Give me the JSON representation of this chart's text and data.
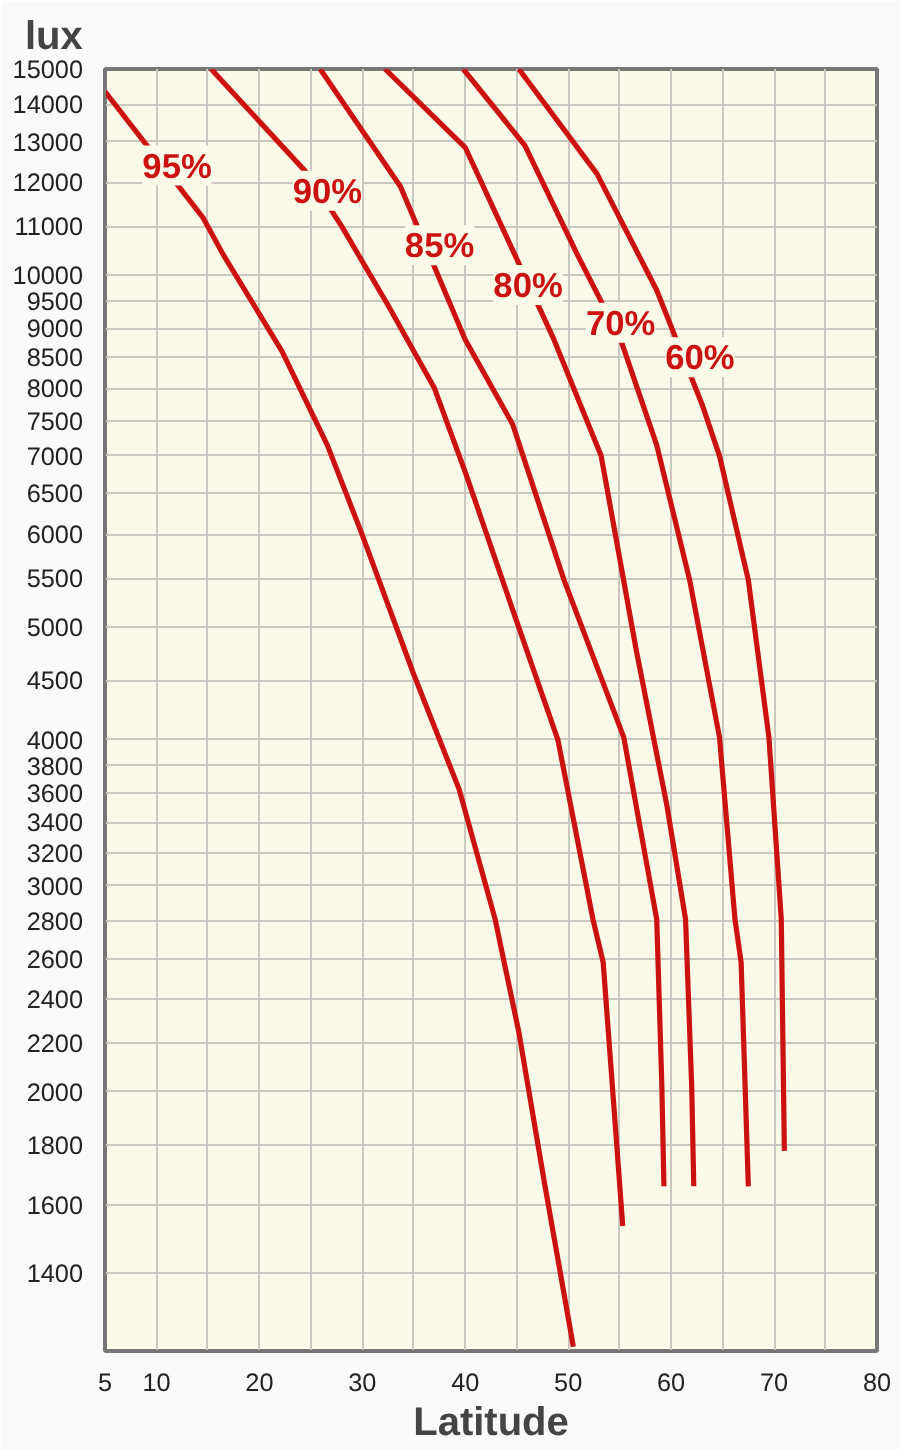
{
  "chart_data": {
    "type": "line",
    "xlabel": "Latitude",
    "ylabel": "lux",
    "log": "y",
    "grid": true,
    "marker": "none",
    "line_style": "solid",
    "xlim": [
      5,
      80
    ],
    "ylim": [
      1200,
      15000
    ],
    "xticks": [
      5,
      10,
      {
        "value": 15,
        "label": null
      },
      20,
      {
        "value": 25,
        "label": null
      },
      30,
      {
        "value": 35,
        "label": null
      },
      40,
      {
        "value": 45,
        "label": null
      },
      50,
      {
        "value": 55,
        "label": null
      },
      60,
      {
        "value": 65,
        "label": null
      },
      70,
      {
        "value": 75,
        "label": null
      },
      80
    ],
    "yticks": [
      1400,
      1600,
      1800,
      2000,
      2200,
      2400,
      2600,
      2800,
      3000,
      3200,
      3400,
      3600,
      3800,
      4000,
      4500,
      5000,
      5500,
      6000,
      6500,
      7000,
      7500,
      8000,
      8500,
      9000,
      9500,
      10000,
      11000,
      12000,
      13000,
      14000,
      15000
    ],
    "series": [
      {
        "color": "#cc1111",
        "x": [
          5,
          14.5,
          16.5,
          22.2,
          26.6,
          29.9,
          35.0,
          39.4,
          42.9,
          45.2,
          47.7,
          50.5
        ],
        "values": [
          14350,
          11200,
          10400,
          8600,
          7150,
          6020,
          4550,
          3630,
          2810,
          2250,
          1670,
          1210
        ]
      },
      {
        "color": "#cc1111",
        "x": [
          15.3,
          24.7,
          28.0,
          32.4,
          37.0,
          40.0,
          44.6,
          49.0,
          52.4,
          53.4,
          55.3
        ],
        "values": [
          15000,
          12200,
          11000,
          9450,
          8000,
          6780,
          5170,
          4000,
          2810,
          2580,
          1535
        ]
      },
      {
        "color": "#cc1111",
        "x": [
          25.9,
          33.7,
          40.0,
          44.6,
          49.6,
          55.4,
          58.6,
          59.1,
          59.3
        ],
        "values": [
          15000,
          11900,
          8800,
          7450,
          5480,
          4020,
          2810,
          2020,
          1660
        ]
      },
      {
        "color": "#cc1111",
        "x": [
          32.2,
          40.0,
          48.5,
          53.2,
          56.6,
          59.6,
          61.4,
          62.0,
          62.2
        ],
        "values": [
          15000,
          12850,
          8850,
          7000,
          4780,
          3510,
          2810,
          2020,
          1660
        ]
      },
      {
        "color": "#cc1111",
        "x": [
          39.8,
          45.8,
          50.9,
          55.1,
          58.6,
          61.8,
          64.7,
          66.2,
          66.8,
          67.5
        ],
        "values": [
          15000,
          12900,
          10400,
          8800,
          7150,
          5480,
          4020,
          2810,
          2580,
          1660
        ]
      },
      {
        "color": "#cc1111",
        "x": [
          45.2,
          52.8,
          58.6,
          63.0,
          64.7,
          67.5,
          69.5,
          70.7,
          71.0
        ],
        "values": [
          15000,
          12200,
          9700,
          7750,
          7000,
          5480,
          4020,
          2810,
          1780
        ]
      }
    ],
    "annotations": [
      {
        "text": "95%",
        "x": 12,
        "y": 12400
      },
      {
        "text": "90%",
        "x": 26.6,
        "y": 11800
      },
      {
        "text": "85%",
        "x": 37.5,
        "y": 10600
      },
      {
        "text": "80%",
        "x": 46.1,
        "y": 9800
      },
      {
        "text": "70%",
        "x": 55.1,
        "y": 9100
      },
      {
        "text": "60%",
        "x": 62.8,
        "y": 8500
      }
    ]
  }
}
